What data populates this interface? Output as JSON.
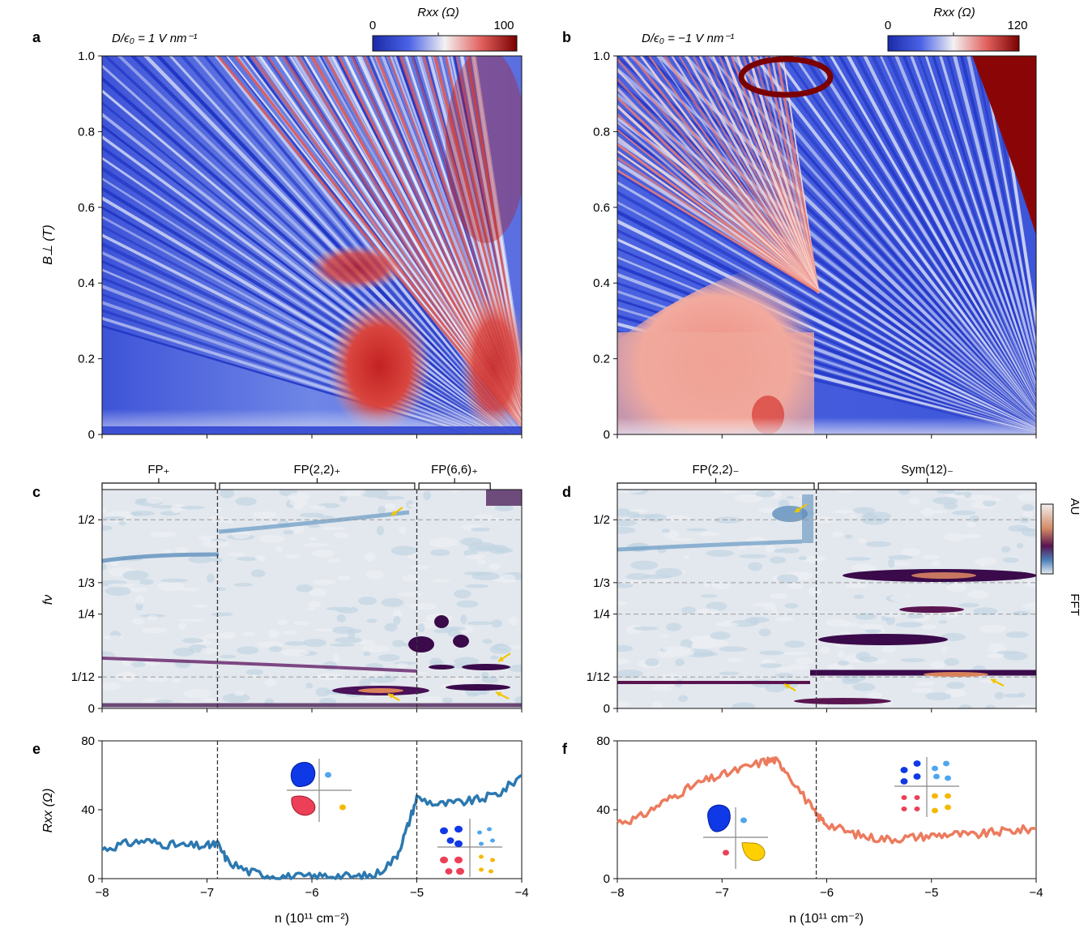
{
  "colors": {
    "blue": "#2e3bd6",
    "white": "#f5f3f4",
    "red": "#c01b1b",
    "darkred": "#6b0000",
    "fft_bg": "#e1e6ec",
    "fft_mid": "#7fb0c8",
    "fft_dark": "#3a0a4a",
    "fft_orange": "#d9825a",
    "line_blue": "#2c78b0",
    "line_orange": "#ec7b5e",
    "arrow_yellow": "#f2c500",
    "grid_dash": "#9a9a9a"
  },
  "panels": {
    "a": {
      "label": "a",
      "annot": "D/ϵ₀ = 1 V nm⁻¹",
      "cbar_title": "Rxx (Ω)",
      "cbar_min": "0",
      "cbar_max": "100"
    },
    "b": {
      "label": "b",
      "annot": "D/ϵ₀ = −1 V nm⁻¹",
      "cbar_title": "Rxx (Ω)",
      "cbar_min": "0",
      "cbar_max": "120"
    },
    "c": {
      "label": "c",
      "brackets": [
        "FP₊",
        "FP(2,2)₊",
        "FP(6,6)₊"
      ]
    },
    "d": {
      "label": "d",
      "brackets": [
        "FP(2,2)₋",
        "Sym(12)₋"
      ],
      "cbar_top": "AU",
      "cbar_bottom": "FFT"
    },
    "e": {
      "label": "e"
    },
    "f": {
      "label": "f"
    }
  },
  "axes": {
    "y_top_label": "B⊥ (T)",
    "y_top_ticks": [
      "0",
      "0.2",
      "0.4",
      "0.6",
      "0.8",
      "1.0"
    ],
    "y_mid_label": "fν",
    "y_mid_ticks": [
      "0",
      "1/12",
      "1/4",
      "1/3",
      "1/2"
    ],
    "y_bot_label": "Rxx (Ω)",
    "y_bot_ticks": [
      "0",
      "40",
      "80"
    ],
    "x_label": "n (10¹¹ cm⁻²)",
    "x_ticks": [
      "−8",
      "−7",
      "−6",
      "−5",
      "−4"
    ]
  },
  "chart_data": [
    {
      "type": "heatmap",
      "panel": "a",
      "x_range": [
        -8,
        -4
      ],
      "y_range": [
        0,
        1.0
      ],
      "color_range": [
        0,
        100
      ],
      "xlabel": "n (10¹¹ cm⁻²)",
      "ylabel": "B⊥ (T)"
    },
    {
      "type": "heatmap",
      "panel": "b",
      "x_range": [
        -8,
        -4
      ],
      "y_range": [
        0,
        1.0
      ],
      "color_range": [
        0,
        120
      ],
      "xlabel": "n (10¹¹ cm⁻²)"
    },
    {
      "type": "heatmap",
      "panel": "c",
      "x_range": [
        -8,
        -4
      ],
      "y_range": [
        0,
        0.58
      ],
      "ylabel": "fν",
      "dividers": [
        -6.9,
        -5.0
      ],
      "dashed_levels": [
        0.5,
        0.0833
      ]
    },
    {
      "type": "heatmap",
      "panel": "d",
      "x_range": [
        -8,
        -4
      ],
      "y_range": [
        0,
        0.58
      ],
      "dividers": [
        -6.1
      ],
      "dashed_levels": [
        0.5,
        0.3333,
        0.25,
        0.0833
      ]
    },
    {
      "type": "line",
      "panel": "e",
      "x_range": [
        -8,
        -4
      ],
      "ylim": [
        0,
        80
      ],
      "ylabel": "Rxx (Ω)",
      "dividers": [
        -6.9,
        -5.0
      ],
      "x": [
        -8.0,
        -7.8,
        -7.6,
        -7.4,
        -7.2,
        -7.0,
        -6.9,
        -6.8,
        -6.6,
        -6.4,
        -6.2,
        -6.0,
        -5.8,
        -5.6,
        -5.4,
        -5.2,
        -5.1,
        -5.0,
        -4.8,
        -4.6,
        -4.4,
        -4.2,
        -4.0
      ],
      "values": [
        17,
        20,
        22,
        20,
        19,
        19,
        20,
        10,
        4,
        2,
        1,
        1,
        2,
        1,
        2,
        12,
        28,
        47,
        43,
        44,
        46,
        50,
        60
      ]
    },
    {
      "type": "line",
      "panel": "f",
      "x_range": [
        -8,
        -4
      ],
      "ylim": [
        0,
        80
      ],
      "dividers": [
        -6.1
      ],
      "x": [
        -8.0,
        -7.8,
        -7.6,
        -7.4,
        -7.2,
        -7.0,
        -6.8,
        -6.6,
        -6.5,
        -6.4,
        -6.2,
        -6.1,
        -6.0,
        -5.8,
        -5.6,
        -5.4,
        -5.2,
        -5.0,
        -4.8,
        -4.6,
        -4.4,
        -4.2,
        -4.0
      ],
      "values": [
        33,
        35,
        43,
        50,
        56,
        60,
        64,
        68,
        69,
        64,
        46,
        37,
        32,
        27,
        24,
        23,
        24,
        25,
        26,
        25,
        27,
        28,
        29
      ]
    }
  ]
}
